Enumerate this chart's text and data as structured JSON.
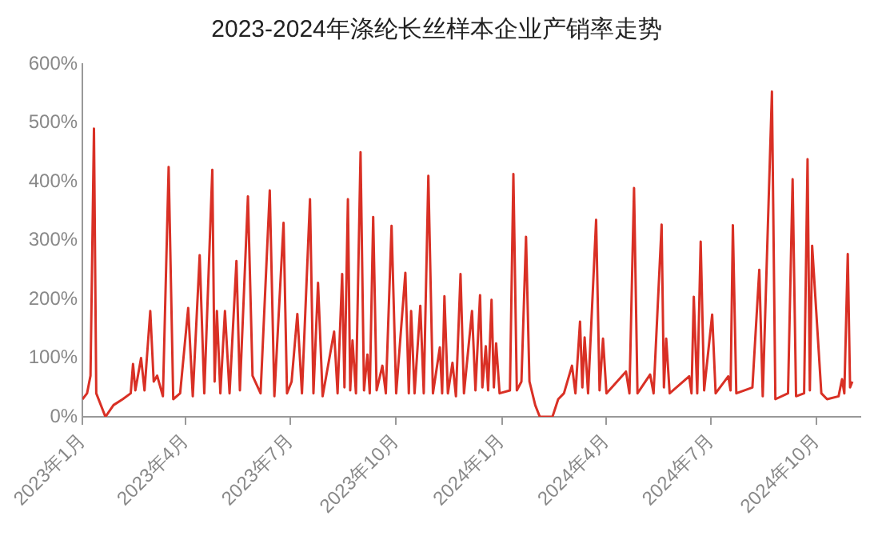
{
  "chart_data": {
    "type": "line",
    "title": "2023-2024年涤纶长丝样本企业产销率走势",
    "x": [
      "2023-01-01",
      "2023-01-05",
      "2023-01-08",
      "2023-01-11",
      "2023-01-13",
      "2023-01-21",
      "2023-01-28",
      "2023-02-05",
      "2023-02-12",
      "2023-02-14",
      "2023-02-16",
      "2023-02-21",
      "2023-02-24",
      "2023-03-01",
      "2023-03-04",
      "2023-03-07",
      "2023-03-12",
      "2023-03-17",
      "2023-03-21",
      "2023-03-27",
      "2023-04-03",
      "2023-04-07",
      "2023-04-13",
      "2023-04-17",
      "2023-04-24",
      "2023-04-26",
      "2023-04-28",
      "2023-05-01",
      "2023-05-05",
      "2023-05-09",
      "2023-05-15",
      "2023-05-18",
      "2023-05-25",
      "2023-05-29",
      "2023-06-05",
      "2023-06-13",
      "2023-06-17",
      "2023-06-25",
      "2023-06-28",
      "2023-07-02",
      "2023-07-07",
      "2023-07-11",
      "2023-07-18",
      "2023-07-21",
      "2023-07-25",
      "2023-07-29",
      "2023-08-08",
      "2023-08-11",
      "2023-08-15",
      "2023-08-17",
      "2023-08-20",
      "2023-08-22",
      "2023-08-24",
      "2023-08-27",
      "2023-08-31",
      "2023-09-03",
      "2023-09-06",
      "2023-09-08",
      "2023-09-11",
      "2023-09-14",
      "2023-09-19",
      "2023-09-22",
      "2023-09-27",
      "2023-10-01",
      "2023-10-09",
      "2023-10-12",
      "2023-10-14",
      "2023-10-17",
      "2023-10-22",
      "2023-10-25",
      "2023-10-29",
      "2023-11-02",
      "2023-11-08",
      "2023-11-10",
      "2023-11-12",
      "2023-11-15",
      "2023-11-19",
      "2023-11-22",
      "2023-11-26",
      "2023-11-29",
      "2023-12-06",
      "2023-12-09",
      "2023-12-13",
      "2023-12-15",
      "2023-12-18",
      "2023-12-20",
      "2023-12-23",
      "2023-12-25",
      "2023-12-27",
      "2023-12-30",
      "2024-01-08",
      "2024-01-11",
      "2024-01-14",
      "2024-01-18",
      "2024-01-22",
      "2024-01-25",
      "2024-01-30",
      "2024-02-03",
      "2024-02-14",
      "2024-02-19",
      "2024-02-24",
      "2024-03-02",
      "2024-03-05",
      "2024-03-09",
      "2024-03-11",
      "2024-03-13",
      "2024-03-16",
      "2024-03-23",
      "2024-03-26",
      "2024-03-29",
      "2024-04-01",
      "2024-04-18",
      "2024-04-21",
      "2024-04-25",
      "2024-04-28",
      "2024-05-09",
      "2024-05-12",
      "2024-05-19",
      "2024-05-21",
      "2024-05-23",
      "2024-05-26",
      "2024-06-12",
      "2024-06-14",
      "2024-06-16",
      "2024-06-19",
      "2024-06-22",
      "2024-06-25",
      "2024-07-02",
      "2024-07-05",
      "2024-07-16",
      "2024-07-18",
      "2024-07-20",
      "2024-07-23",
      "2024-08-06",
      "2024-08-12",
      "2024-08-15",
      "2024-08-23",
      "2024-08-26",
      "2024-09-06",
      "2024-09-10",
      "2024-09-13",
      "2024-09-20",
      "2024-09-23",
      "2024-09-25",
      "2024-09-27",
      "2024-10-05",
      "2024-10-10",
      "2024-10-20",
      "2024-10-23",
      "2024-10-25",
      "2024-10-28",
      "2024-10-30",
      "2024-11-01"
    ],
    "series": [
      {
        "color": "#d93025",
        "values": [
          30,
          40,
          70,
          490,
          40,
          0,
          20,
          30,
          40,
          90,
          45,
          100,
          45,
          180,
          60,
          70,
          35,
          425,
          30,
          40,
          185,
          35,
          275,
          40,
          420,
          60,
          180,
          40,
          180,
          40,
          265,
          45,
          375,
          70,
          40,
          385,
          35,
          330,
          40,
          60,
          175,
          40,
          370,
          40,
          228,
          35,
          145,
          40,
          243,
          50,
          370,
          45,
          130,
          40,
          450,
          45,
          106,
          40,
          340,
          45,
          87,
          40,
          325,
          40,
          245,
          40,
          180,
          40,
          189,
          40,
          410,
          40,
          118,
          40,
          205,
          40,
          92,
          35,
          243,
          40,
          180,
          45,
          207,
          50,
          120,
          45,
          199,
          50,
          125,
          40,
          45,
          413,
          45,
          60,
          306,
          60,
          20,
          0,
          0,
          30,
          40,
          87,
          40,
          162,
          50,
          135,
          40,
          335,
          45,
          133,
          40,
          77,
          40,
          389,
          40,
          72,
          40,
          327,
          50,
          133,
          40,
          69,
          40,
          204,
          40,
          298,
          45,
          174,
          40,
          69,
          45,
          326,
          40,
          50,
          250,
          35,
          553,
          30,
          40,
          404,
          35,
          40,
          438,
          45,
          291,
          40,
          30,
          35,
          64,
          40,
          277,
          50,
          60
        ]
      }
    ],
    "xlim": [
      "2023-01-01",
      "2024-11-08"
    ],
    "xticks": [
      {
        "value": "2023-01",
        "label": "2023年1月"
      },
      {
        "value": "2023-04",
        "label": "2023年4月"
      },
      {
        "value": "2023-07",
        "label": "2023年7月"
      },
      {
        "value": "2023-10",
        "label": "2023年10月"
      },
      {
        "value": "2024-01",
        "label": "2024年1月"
      },
      {
        "value": "2024-04",
        "label": "2024年4月"
      },
      {
        "value": "2024-07",
        "label": "2024年7月"
      },
      {
        "value": "2024-10",
        "label": "2024年10月"
      }
    ],
    "ylim": [
      0,
      600
    ],
    "yticks": [
      {
        "value": 0,
        "label": "0%"
      },
      {
        "value": 100,
        "label": "100%"
      },
      {
        "value": 200,
        "label": "200%"
      },
      {
        "value": 300,
        "label": "300%"
      },
      {
        "value": 400,
        "label": "400%"
      },
      {
        "value": 500,
        "label": "500%"
      },
      {
        "value": 600,
        "label": "600%"
      }
    ],
    "grid": false,
    "legend": false,
    "marker": "none",
    "line_style": "solid"
  }
}
